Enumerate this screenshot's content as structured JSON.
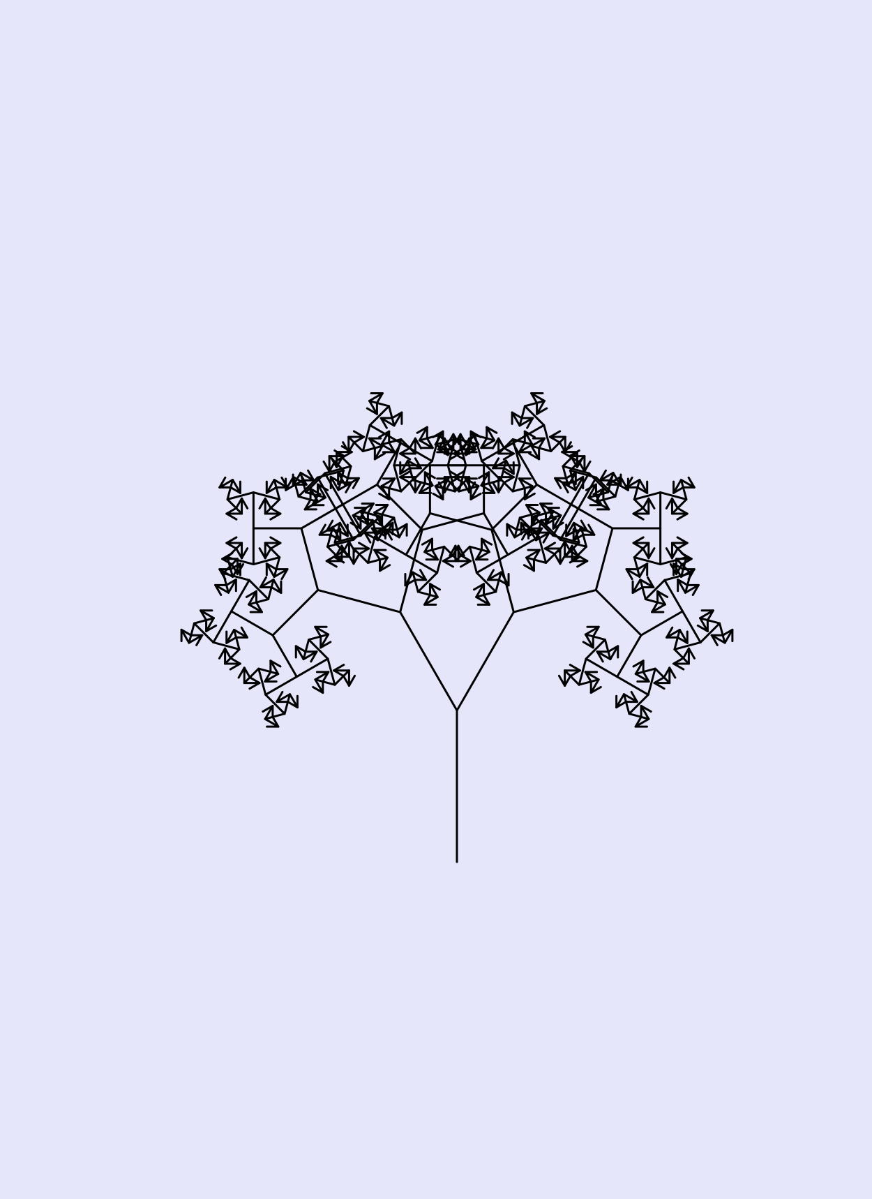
{
  "figure": {
    "subject": "fractal-binary-tree",
    "depth": 9,
    "angles_deg": [
      30,
      45,
      60,
      75,
      90,
      105,
      120,
      135,
      150
    ],
    "length_ratio": 0.75,
    "colors": {
      "background": "#e6e6fa",
      "stroke": "#000000"
    }
  }
}
